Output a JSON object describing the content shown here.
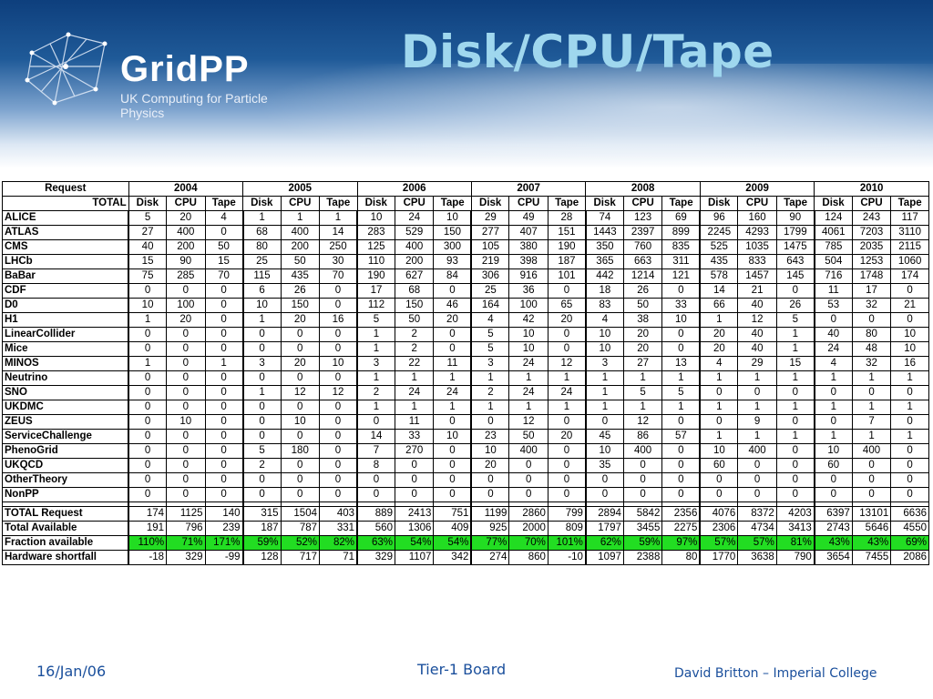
{
  "header": {
    "logo_word": "GridPP",
    "logo_sub": "UK Computing for Particle Physics",
    "title": "Disk/CPU/Tape"
  },
  "table": {
    "corner_top": "Request",
    "corner_bottom": "TOTAL",
    "years": [
      "2004",
      "2005",
      "2006",
      "2007",
      "2008",
      "2009",
      "2010"
    ],
    "subheaders": [
      "Disk",
      "CPU",
      "Tape"
    ],
    "rows": [
      {
        "name": "ALICE",
        "values": [
          "5",
          "20",
          "4",
          "1",
          "1",
          "1",
          "10",
          "24",
          "10",
          "29",
          "49",
          "28",
          "74",
          "123",
          "69",
          "96",
          "160",
          "90",
          "124",
          "243",
          "117"
        ]
      },
      {
        "name": "ATLAS",
        "values": [
          "27",
          "400",
          "0",
          "68",
          "400",
          "14",
          "283",
          "529",
          "150",
          "277",
          "407",
          "151",
          "1443",
          "2397",
          "899",
          "2245",
          "4293",
          "1799",
          "4061",
          "7203",
          "3110"
        ]
      },
      {
        "name": "CMS",
        "values": [
          "40",
          "200",
          "50",
          "80",
          "200",
          "250",
          "125",
          "400",
          "300",
          "105",
          "380",
          "190",
          "350",
          "760",
          "835",
          "525",
          "1035",
          "1475",
          "785",
          "2035",
          "2115"
        ]
      },
      {
        "name": "LHCb",
        "values": [
          "15",
          "90",
          "15",
          "25",
          "50",
          "30",
          "110",
          "200",
          "93",
          "219",
          "398",
          "187",
          "365",
          "663",
          "311",
          "435",
          "833",
          "643",
          "504",
          "1253",
          "1060"
        ]
      },
      {
        "name": "BaBar",
        "values": [
          "75",
          "285",
          "70",
          "115",
          "435",
          "70",
          "190",
          "627",
          "84",
          "306",
          "916",
          "101",
          "442",
          "1214",
          "121",
          "578",
          "1457",
          "145",
          "716",
          "1748",
          "174"
        ]
      },
      {
        "name": "CDF",
        "values": [
          "0",
          "0",
          "0",
          "6",
          "26",
          "0",
          "17",
          "68",
          "0",
          "25",
          "36",
          "0",
          "18",
          "26",
          "0",
          "14",
          "21",
          "0",
          "11",
          "17",
          "0"
        ]
      },
      {
        "name": "D0",
        "values": [
          "10",
          "100",
          "0",
          "10",
          "150",
          "0",
          "112",
          "150",
          "46",
          "164",
          "100",
          "65",
          "83",
          "50",
          "33",
          "66",
          "40",
          "26",
          "53",
          "32",
          "21"
        ]
      },
      {
        "name": "H1",
        "values": [
          "1",
          "20",
          "0",
          "1",
          "20",
          "16",
          "5",
          "50",
          "20",
          "4",
          "42",
          "20",
          "4",
          "38",
          "10",
          "1",
          "12",
          "5",
          "0",
          "0",
          "0"
        ]
      },
      {
        "name": "LinearCollider",
        "values": [
          "0",
          "0",
          "0",
          "0",
          "0",
          "0",
          "1",
          "2",
          "0",
          "5",
          "10",
          "0",
          "10",
          "20",
          "0",
          "20",
          "40",
          "1",
          "40",
          "80",
          "10"
        ]
      },
      {
        "name": "Mice",
        "values": [
          "0",
          "0",
          "0",
          "0",
          "0",
          "0",
          "1",
          "2",
          "0",
          "5",
          "10",
          "0",
          "10",
          "20",
          "0",
          "20",
          "40",
          "1",
          "24",
          "48",
          "10"
        ]
      },
      {
        "name": "MINOS",
        "values": [
          "1",
          "0",
          "1",
          "3",
          "20",
          "10",
          "3",
          "22",
          "11",
          "3",
          "24",
          "12",
          "3",
          "27",
          "13",
          "4",
          "29",
          "15",
          "4",
          "32",
          "16"
        ]
      },
      {
        "name": "Neutrino",
        "values": [
          "0",
          "0",
          "0",
          "0",
          "0",
          "0",
          "1",
          "1",
          "1",
          "1",
          "1",
          "1",
          "1",
          "1",
          "1",
          "1",
          "1",
          "1",
          "1",
          "1",
          "1"
        ]
      },
      {
        "name": "SNO",
        "values": [
          "0",
          "0",
          "0",
          "1",
          "12",
          "12",
          "2",
          "24",
          "24",
          "2",
          "24",
          "24",
          "1",
          "5",
          "5",
          "0",
          "0",
          "0",
          "0",
          "0",
          "0"
        ]
      },
      {
        "name": "UKDMC",
        "values": [
          "0",
          "0",
          "0",
          "0",
          "0",
          "0",
          "1",
          "1",
          "1",
          "1",
          "1",
          "1",
          "1",
          "1",
          "1",
          "1",
          "1",
          "1",
          "1",
          "1",
          "1"
        ]
      },
      {
        "name": "ZEUS",
        "values": [
          "0",
          "10",
          "0",
          "0",
          "10",
          "0",
          "0",
          "11",
          "0",
          "0",
          "12",
          "0",
          "0",
          "12",
          "0",
          "0",
          "9",
          "0",
          "0",
          "7",
          "0"
        ]
      },
      {
        "name": "ServiceChallenge",
        "values": [
          "0",
          "0",
          "0",
          "0",
          "0",
          "0",
          "14",
          "33",
          "10",
          "23",
          "50",
          "20",
          "45",
          "86",
          "57",
          "1",
          "1",
          "1",
          "1",
          "1",
          "1"
        ]
      },
      {
        "name": "PhenoGrid",
        "values": [
          "0",
          "0",
          "0",
          "5",
          "180",
          "0",
          "7",
          "270",
          "0",
          "10",
          "400",
          "0",
          "10",
          "400",
          "0",
          "10",
          "400",
          "0",
          "10",
          "400",
          "0"
        ]
      },
      {
        "name": "UKQCD",
        "values": [
          "0",
          "0",
          "0",
          "2",
          "0",
          "0",
          "8",
          "0",
          "0",
          "20",
          "0",
          "0",
          "35",
          "0",
          "0",
          "60",
          "0",
          "0",
          "60",
          "0",
          "0"
        ]
      },
      {
        "name": "OtherTheory",
        "values": [
          "0",
          "0",
          "0",
          "0",
          "0",
          "0",
          "0",
          "0",
          "0",
          "0",
          "0",
          "0",
          "0",
          "0",
          "0",
          "0",
          "0",
          "0",
          "0",
          "0",
          "0"
        ]
      },
      {
        "name": "NonPP",
        "values": [
          "0",
          "0",
          "0",
          "0",
          "0",
          "0",
          "0",
          "0",
          "0",
          "0",
          "0",
          "0",
          "0",
          "0",
          "0",
          "0",
          "0",
          "0",
          "0",
          "0",
          "0"
        ]
      }
    ],
    "summary": [
      {
        "name": "TOTAL Request",
        "green": false,
        "values": [
          "174",
          "1125",
          "140",
          "315",
          "1504",
          "403",
          "889",
          "2413",
          "751",
          "1199",
          "2860",
          "799",
          "2894",
          "5842",
          "2356",
          "4076",
          "8372",
          "4203",
          "6397",
          "13101",
          "6636"
        ]
      },
      {
        "name": "Total Available",
        "green": false,
        "values": [
          "191",
          "796",
          "239",
          "187",
          "787",
          "331",
          "560",
          "1306",
          "409",
          "925",
          "2000",
          "809",
          "1797",
          "3455",
          "2275",
          "2306",
          "4734",
          "3413",
          "2743",
          "5646",
          "4550"
        ]
      },
      {
        "name": "Fraction available",
        "green": true,
        "values": [
          "110%",
          "71%",
          "171%",
          "59%",
          "52%",
          "82%",
          "63%",
          "54%",
          "54%",
          "77%",
          "70%",
          "101%",
          "62%",
          "59%",
          "97%",
          "57%",
          "57%",
          "81%",
          "43%",
          "43%",
          "69%"
        ]
      },
      {
        "name": "Hardware shortfall",
        "green": false,
        "values": [
          "-18",
          "329",
          "-99",
          "128",
          "717",
          "71",
          "329",
          "1107",
          "342",
          "274",
          "860",
          "-10",
          "1097",
          "2388",
          "80",
          "1770",
          "3638",
          "790",
          "3654",
          "7455",
          "2086"
        ]
      }
    ]
  },
  "footer": {
    "date": "16/Jan/06",
    "center": "Tier-1 Board",
    "right": "David Britton – Imperial College"
  }
}
